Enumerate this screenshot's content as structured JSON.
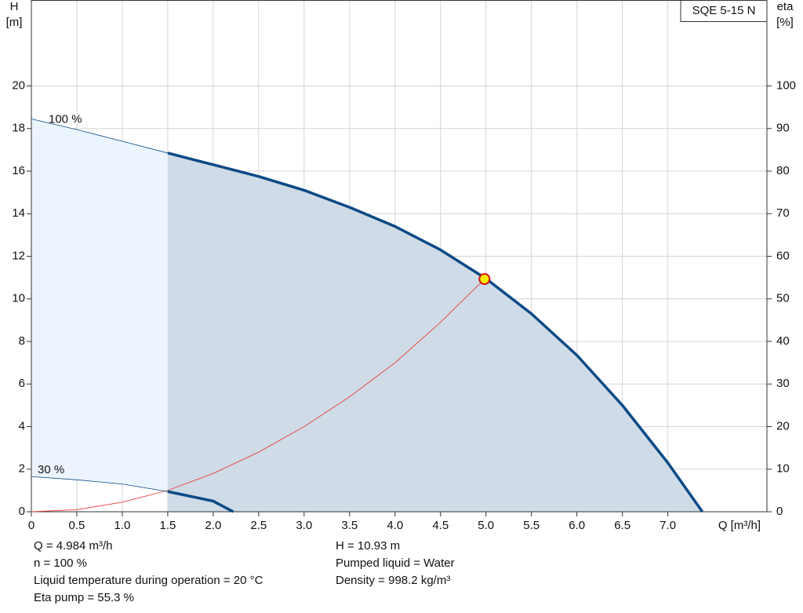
{
  "chart_data": {
    "type": "line",
    "title": "SQE 5-15 N",
    "x_label": "Q [m³/h]",
    "y_label": [
      "H",
      "[m]"
    ],
    "y2_label": [
      "eta",
      "[%]"
    ],
    "xlim": [
      0,
      8.09
    ],
    "xticks": [
      0,
      0.5,
      {
        "value": 1,
        "label": "1.0"
      },
      1.5,
      {
        "value": 2,
        "label": "2.0"
      },
      2.5,
      {
        "value": 3,
        "label": "3.0"
      },
      3.5,
      {
        "value": 4,
        "label": "4.0"
      },
      4.5,
      {
        "value": 5,
        "label": "5.0"
      },
      5.5,
      {
        "value": 6,
        "label": "6.0"
      },
      6.5,
      {
        "value": 7,
        "label": "7.0"
      }
    ],
    "ylim": [
      0,
      24
    ],
    "yticks": [
      0,
      2,
      4,
      6,
      8,
      10,
      12,
      14,
      16,
      18,
      20
    ],
    "y2lim": [
      0,
      120
    ],
    "y2ticks": [
      0,
      10,
      20,
      30,
      40,
      50,
      60,
      70,
      80,
      90,
      100
    ],
    "grid": true,
    "min_flow": 1.5,
    "series": [
      {
        "name": "100 %",
        "color": "#0b4a86",
        "x": [
          0,
          0.5,
          1.0,
          1.5,
          2.0,
          2.5,
          3.0,
          3.5,
          4.0,
          4.5,
          5.0,
          5.5,
          6.0,
          6.5,
          7.0,
          7.38
        ],
        "values": [
          18.45,
          17.95,
          17.4,
          16.85,
          16.3,
          15.75,
          15.1,
          14.3,
          13.4,
          12.3,
          10.95,
          9.3,
          7.35,
          5.0,
          2.3,
          0
        ]
      },
      {
        "name": "30 %",
        "color": "#0b4a86",
        "x": [
          0,
          0.5,
          1.0,
          1.5,
          2.0,
          2.22
        ],
        "values": [
          1.65,
          1.5,
          1.3,
          0.95,
          0.5,
          0
        ]
      }
    ],
    "system_curve": {
      "color": "#e8403a",
      "x": [
        0,
        0.5,
        1.0,
        1.5,
        2.0,
        2.5,
        3.0,
        3.5,
        4.0,
        4.5,
        4.984
      ],
      "values": [
        0,
        0.1,
        0.45,
        1.0,
        1.8,
        2.8,
        4.0,
        5.4,
        7.0,
        8.9,
        10.93
      ]
    },
    "duty_point": {
      "x": 4.984,
      "y": 10.93,
      "color": "#ffee00"
    },
    "info_left": [
      "Q = 4.984 m³/h",
      "n = 100 %",
      "Liquid temperature during operation = 20 °C",
      "Eta pump = 55.3 %"
    ],
    "info_right": [
      "H = 10.93 m",
      "Pumped liquid = Water",
      "Density = 998.2 kg/m³"
    ]
  }
}
